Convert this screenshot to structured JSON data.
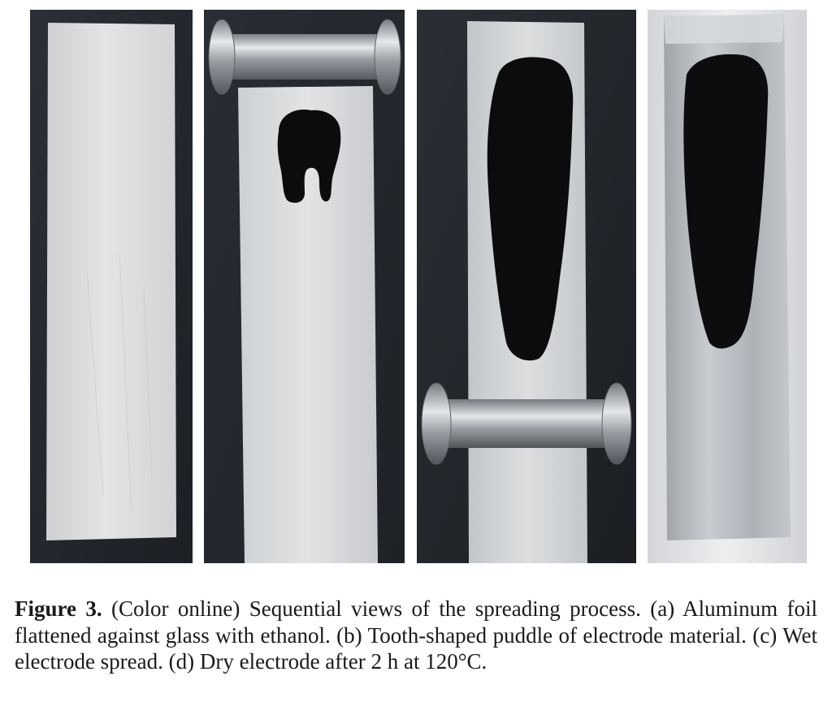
{
  "figure": {
    "label": "Figure 3.",
    "caption": "(Color online) Sequential views of the spreading process. (a) Aluminum foil flattened against glass with ethanol. (b) Tooth-shaped puddle of electrode material. (c) Wet electrode spread. (d) Dry electrode after 2 h at 120°C."
  },
  "colors": {
    "background_dark": "#22262c",
    "foil": "#d9dadb",
    "electrode": "#0c0c0e",
    "steel": "#b8bcc0"
  }
}
